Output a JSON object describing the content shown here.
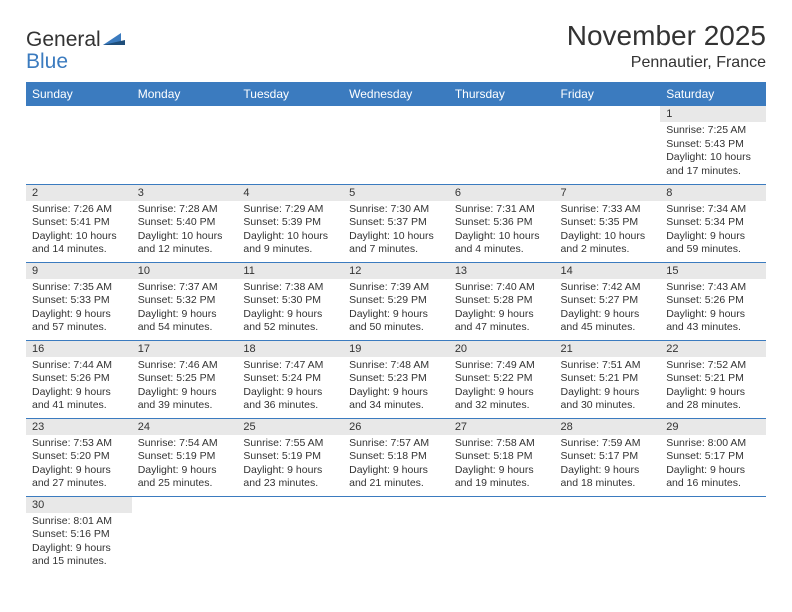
{
  "logo": {
    "general": "General",
    "blue": "Blue"
  },
  "title": "November 2025",
  "location": "Pennautier, France",
  "colors": {
    "header_bg": "#3b7bbf",
    "header_text": "#ffffff",
    "daynum_bg": "#e8e8e8",
    "border": "#3b7bbf",
    "text": "#333333"
  },
  "days_of_week": [
    "Sunday",
    "Monday",
    "Tuesday",
    "Wednesday",
    "Thursday",
    "Friday",
    "Saturday"
  ],
  "grid": [
    [
      null,
      null,
      null,
      null,
      null,
      null,
      {
        "n": "1",
        "sr": "7:25 AM",
        "ss": "5:43 PM",
        "dl": "10 hours and 17 minutes."
      }
    ],
    [
      {
        "n": "2",
        "sr": "7:26 AM",
        "ss": "5:41 PM",
        "dl": "10 hours and 14 minutes."
      },
      {
        "n": "3",
        "sr": "7:28 AM",
        "ss": "5:40 PM",
        "dl": "10 hours and 12 minutes."
      },
      {
        "n": "4",
        "sr": "7:29 AM",
        "ss": "5:39 PM",
        "dl": "10 hours and 9 minutes."
      },
      {
        "n": "5",
        "sr": "7:30 AM",
        "ss": "5:37 PM",
        "dl": "10 hours and 7 minutes."
      },
      {
        "n": "6",
        "sr": "7:31 AM",
        "ss": "5:36 PM",
        "dl": "10 hours and 4 minutes."
      },
      {
        "n": "7",
        "sr": "7:33 AM",
        "ss": "5:35 PM",
        "dl": "10 hours and 2 minutes."
      },
      {
        "n": "8",
        "sr": "7:34 AM",
        "ss": "5:34 PM",
        "dl": "9 hours and 59 minutes."
      }
    ],
    [
      {
        "n": "9",
        "sr": "7:35 AM",
        "ss": "5:33 PM",
        "dl": "9 hours and 57 minutes."
      },
      {
        "n": "10",
        "sr": "7:37 AM",
        "ss": "5:32 PM",
        "dl": "9 hours and 54 minutes."
      },
      {
        "n": "11",
        "sr": "7:38 AM",
        "ss": "5:30 PM",
        "dl": "9 hours and 52 minutes."
      },
      {
        "n": "12",
        "sr": "7:39 AM",
        "ss": "5:29 PM",
        "dl": "9 hours and 50 minutes."
      },
      {
        "n": "13",
        "sr": "7:40 AM",
        "ss": "5:28 PM",
        "dl": "9 hours and 47 minutes."
      },
      {
        "n": "14",
        "sr": "7:42 AM",
        "ss": "5:27 PM",
        "dl": "9 hours and 45 minutes."
      },
      {
        "n": "15",
        "sr": "7:43 AM",
        "ss": "5:26 PM",
        "dl": "9 hours and 43 minutes."
      }
    ],
    [
      {
        "n": "16",
        "sr": "7:44 AM",
        "ss": "5:26 PM",
        "dl": "9 hours and 41 minutes."
      },
      {
        "n": "17",
        "sr": "7:46 AM",
        "ss": "5:25 PM",
        "dl": "9 hours and 39 minutes."
      },
      {
        "n": "18",
        "sr": "7:47 AM",
        "ss": "5:24 PM",
        "dl": "9 hours and 36 minutes."
      },
      {
        "n": "19",
        "sr": "7:48 AM",
        "ss": "5:23 PM",
        "dl": "9 hours and 34 minutes."
      },
      {
        "n": "20",
        "sr": "7:49 AM",
        "ss": "5:22 PM",
        "dl": "9 hours and 32 minutes."
      },
      {
        "n": "21",
        "sr": "7:51 AM",
        "ss": "5:21 PM",
        "dl": "9 hours and 30 minutes."
      },
      {
        "n": "22",
        "sr": "7:52 AM",
        "ss": "5:21 PM",
        "dl": "9 hours and 28 minutes."
      }
    ],
    [
      {
        "n": "23",
        "sr": "7:53 AM",
        "ss": "5:20 PM",
        "dl": "9 hours and 27 minutes."
      },
      {
        "n": "24",
        "sr": "7:54 AM",
        "ss": "5:19 PM",
        "dl": "9 hours and 25 minutes."
      },
      {
        "n": "25",
        "sr": "7:55 AM",
        "ss": "5:19 PM",
        "dl": "9 hours and 23 minutes."
      },
      {
        "n": "26",
        "sr": "7:57 AM",
        "ss": "5:18 PM",
        "dl": "9 hours and 21 minutes."
      },
      {
        "n": "27",
        "sr": "7:58 AM",
        "ss": "5:18 PM",
        "dl": "9 hours and 19 minutes."
      },
      {
        "n": "28",
        "sr": "7:59 AM",
        "ss": "5:17 PM",
        "dl": "9 hours and 18 minutes."
      },
      {
        "n": "29",
        "sr": "8:00 AM",
        "ss": "5:17 PM",
        "dl": "9 hours and 16 minutes."
      }
    ],
    [
      {
        "n": "30",
        "sr": "8:01 AM",
        "ss": "5:16 PM",
        "dl": "9 hours and 15 minutes."
      },
      null,
      null,
      null,
      null,
      null,
      null
    ]
  ],
  "labels": {
    "sunrise": "Sunrise: ",
    "sunset": "Sunset: ",
    "daylight": "Daylight: "
  }
}
